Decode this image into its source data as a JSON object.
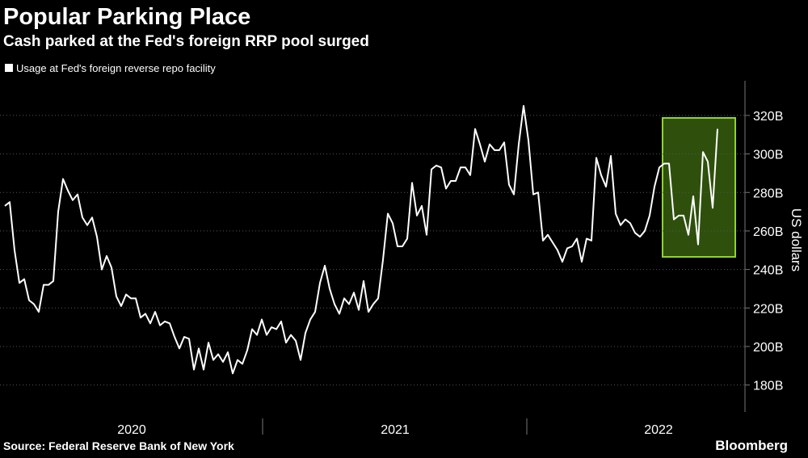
{
  "chart_data": {
    "type": "line",
    "title": "Popular Parking Place",
    "subtitle": "Cash parked at the Fed's foreign RRP pool surged",
    "y_label": "US dollars",
    "source": "Source: Federal Reserve Bank of New York",
    "brand": "Bloomberg",
    "year_labels": [
      "2020",
      "2021",
      "2022"
    ],
    "ylim": [
      166,
      338
    ],
    "yticks": [
      {
        "value": 180,
        "label": "180B"
      },
      {
        "value": 200,
        "label": "200B"
      },
      {
        "value": 220,
        "label": "220B"
      },
      {
        "value": 240,
        "label": "240B"
      },
      {
        "value": 260,
        "label": "260B"
      },
      {
        "value": 280,
        "label": "280B"
      },
      {
        "value": 300,
        "label": "300B"
      },
      {
        "value": 320,
        "label": "320B"
      }
    ],
    "series": [
      {
        "name": "Usage at Fed's foreign reverse repo facility",
        "color": "#ffffff",
        "values": [
          273,
          275,
          250,
          233,
          235,
          224,
          222,
          218,
          232,
          232,
          234,
          270,
          287,
          281,
          276,
          279,
          267,
          263,
          267,
          257,
          240,
          247,
          241,
          226,
          221,
          227,
          225,
          225,
          215,
          217,
          212,
          218,
          211,
          213,
          212,
          205,
          199,
          205,
          204,
          188,
          199,
          188,
          202,
          193,
          196,
          192,
          197,
          186,
          193,
          191,
          198,
          209,
          206,
          214,
          206,
          210,
          209,
          213,
          202,
          206,
          203,
          193,
          207,
          214,
          218,
          233,
          242,
          230,
          222,
          217,
          225,
          222,
          228,
          219,
          234,
          218,
          222,
          225,
          245,
          269,
          264,
          252,
          252,
          256,
          285,
          268,
          273,
          258,
          292,
          294,
          293,
          282,
          286,
          286,
          293,
          293,
          289,
          313,
          305,
          296,
          305,
          302,
          302,
          306,
          284,
          279,
          305,
          325,
          307,
          279,
          280,
          255,
          258,
          254,
          250,
          244,
          251,
          252,
          256,
          244,
          256,
          255,
          298,
          289,
          283,
          299,
          269,
          263,
          266,
          264,
          259,
          257,
          260,
          268,
          283,
          293,
          295,
          295,
          266,
          268,
          268,
          258,
          278,
          253,
          301,
          296,
          272,
          313
        ]
      }
    ]
  }
}
